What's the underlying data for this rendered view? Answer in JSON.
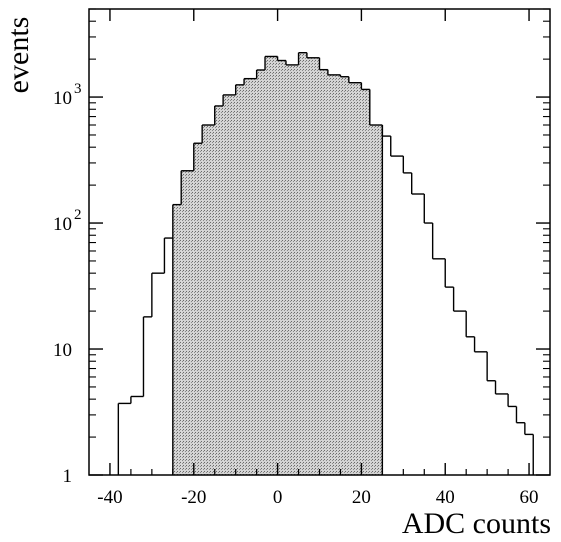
{
  "chart_data": {
    "type": "histogram",
    "title": "",
    "xlabel": "ADC counts",
    "ylabel": "events",
    "xlim": [
      -45,
      65
    ],
    "ylim": [
      1,
      5000
    ],
    "y_scale": "log",
    "grid": false,
    "legend": "none",
    "x_ticks": [
      {
        "value": -40,
        "label": "-40"
      },
      {
        "value": -20,
        "label": "-20"
      },
      {
        "value": 0,
        "label": "0"
      },
      {
        "value": 20,
        "label": "20"
      },
      {
        "value": 40,
        "label": "40"
      },
      {
        "value": 60,
        "label": "60"
      }
    ],
    "y_ticks": [
      {
        "value": 1,
        "base": "1",
        "exp": ""
      },
      {
        "value": 10,
        "base": "10",
        "exp": ""
      },
      {
        "value": 100,
        "base": "10",
        "exp": "2"
      },
      {
        "value": 1000,
        "base": "10",
        "exp": "3"
      }
    ],
    "bin_edges": [
      -38,
      -35,
      -32,
      -30,
      -27,
      -25,
      -23,
      -20,
      -18,
      -15,
      -13,
      -10,
      -8,
      -5,
      -3,
      0,
      2,
      5,
      7,
      10,
      12,
      15,
      17,
      20,
      22,
      25,
      27,
      30,
      32,
      35,
      37,
      40,
      42,
      45,
      47,
      50,
      52,
      55,
      57,
      59,
      61
    ],
    "counts": [
      3.7,
      4.2,
      18,
      40,
      76,
      140,
      260,
      430,
      600,
      850,
      1040,
      1250,
      1400,
      1640,
      2100,
      1950,
      1800,
      2250,
      2050,
      1650,
      1500,
      1450,
      1300,
      1150,
      600,
      490,
      340,
      250,
      170,
      100,
      52,
      31,
      20,
      12.5,
      9.5,
      5.6,
      4.4,
      3.5,
      2.6,
      2.1
    ],
    "shaded_range": [
      -25,
      25
    ],
    "colors": {
      "line": "#000000",
      "fill": "#b8b8b8",
      "background": "#ffffff"
    }
  }
}
